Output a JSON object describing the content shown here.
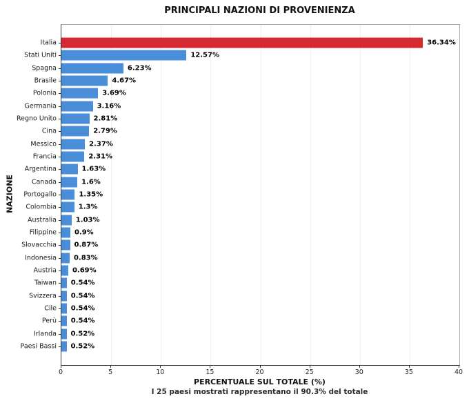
{
  "title": "PRINCIPALI NAZIONI DI PROVENIENZA",
  "subtitle": "I 25 paesi mostrati rappresentano il 90.3% del totale",
  "colors": {
    "highlight_bar": "#d62a32",
    "default_bar": "#4a8dd9",
    "grid": "#efefef",
    "axis": "#333333",
    "text": "#111111"
  },
  "chart_data": {
    "type": "bar",
    "orientation": "horizontal",
    "title": "PRINCIPALI NAZIONI DI PROVENIENZA",
    "subtitle": "I 25 paesi mostrati rappresentano il 90.3% del totale",
    "xlabel": "PERCENTUALE SUL TOTALE (%)",
    "ylabel": "NAZIONE",
    "xlim": [
      0,
      40
    ],
    "xticks": [
      0,
      5,
      10,
      15,
      20,
      25,
      30,
      35,
      40
    ],
    "grid": "vertical light-gray at each x tick",
    "legend": "none",
    "categories": [
      "Italia",
      "Stati Uniti",
      "Spagna",
      "Brasile",
      "Polonia",
      "Germania",
      "Regno Unito",
      "Cina",
      "Messico",
      "Francia",
      "Argentina",
      "Canada",
      "Portogallo",
      "Colombia",
      "Australia",
      "Filippine",
      "Slovacchia",
      "Indonesia",
      "Austria",
      "Taiwan",
      "Svizzera",
      "Cile",
      "Perù",
      "Irlanda",
      "Paesi Bassi"
    ],
    "values": [
      36.34,
      12.57,
      6.23,
      4.67,
      3.69,
      3.16,
      2.81,
      2.79,
      2.37,
      2.31,
      1.63,
      1.6,
      1.35,
      1.3,
      1.03,
      0.9,
      0.87,
      0.83,
      0.69,
      0.54,
      0.54,
      0.54,
      0.54,
      0.52,
      0.52
    ],
    "value_labels": [
      "36.34%",
      "12.57%",
      "6.23%",
      "4.67%",
      "3.69%",
      "3.16%",
      "2.81%",
      "2.79%",
      "2.37%",
      "2.31%",
      "1.63%",
      "1.6%",
      "1.35%",
      "1.3%",
      "1.03%",
      "0.9%",
      "0.87%",
      "0.83%",
      "0.69%",
      "0.54%",
      "0.54%",
      "0.54%",
      "0.54%",
      "0.52%",
      "0.52%"
    ],
    "highlight_index": 0
  }
}
